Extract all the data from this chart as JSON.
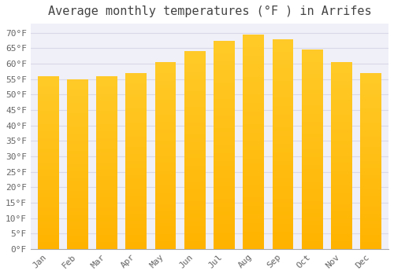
{
  "title": "Average monthly temperatures (°F ) in Arrifes",
  "months": [
    "Jan",
    "Feb",
    "Mar",
    "Apr",
    "May",
    "Jun",
    "Jul",
    "Aug",
    "Sep",
    "Oct",
    "Nov",
    "Dec"
  ],
  "values": [
    56,
    55,
    56,
    57,
    60.5,
    64,
    67.5,
    69.5,
    68,
    64.5,
    60.5,
    57
  ],
  "bar_color": "#FFA500",
  "bar_highlight": "#FFD700",
  "background_color": "#ffffff",
  "plot_bg_color": "#f0f0f8",
  "ylim": [
    0,
    73
  ],
  "yticks": [
    0,
    5,
    10,
    15,
    20,
    25,
    30,
    35,
    40,
    45,
    50,
    55,
    60,
    65,
    70
  ],
  "ytick_labels": [
    "0°F",
    "5°F",
    "10°F",
    "15°F",
    "20°F",
    "25°F",
    "30°F",
    "35°F",
    "40°F",
    "45°F",
    "50°F",
    "55°F",
    "60°F",
    "65°F",
    "70°F"
  ],
  "title_fontsize": 11,
  "tick_fontsize": 8,
  "grid_color": "#d8d8e8",
  "bar_width": 0.72
}
